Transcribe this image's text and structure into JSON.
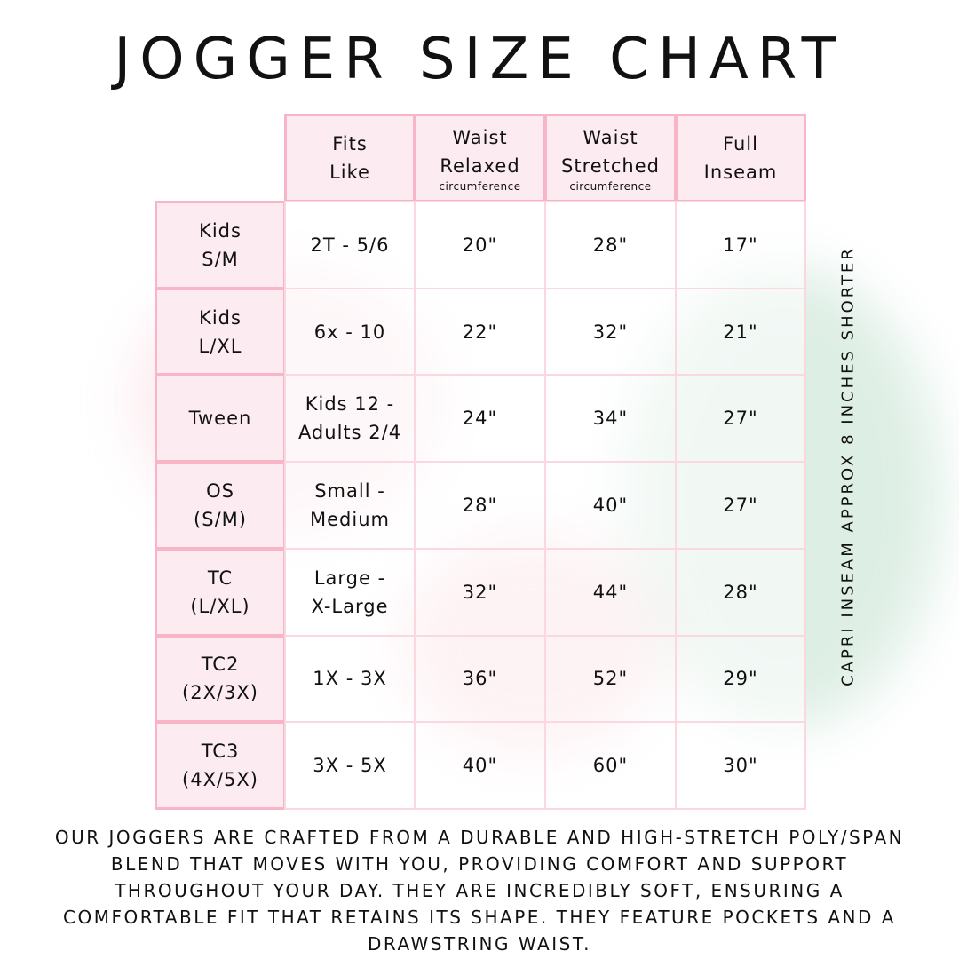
{
  "title": "JOGGER SIZE CHART",
  "headers": [
    {
      "line1": "Fits",
      "line2": "Like",
      "sub": ""
    },
    {
      "line1": "Waist",
      "line2": "Relaxed",
      "sub": "circumference"
    },
    {
      "line1": "Waist",
      "line2": "Stretched",
      "sub": "circumference"
    },
    {
      "line1": "Full",
      "line2": "Inseam",
      "sub": ""
    }
  ],
  "rows": [
    {
      "size": [
        "Kids",
        "S/M"
      ],
      "fits": [
        "2T - 5/6"
      ],
      "relaxed": "20\"",
      "stretched": "28\"",
      "inseam": "17\""
    },
    {
      "size": [
        "Kids",
        "L/XL"
      ],
      "fits": [
        "6x - 10"
      ],
      "relaxed": "22\"",
      "stretched": "32\"",
      "inseam": "21\""
    },
    {
      "size": [
        "Tween"
      ],
      "fits": [
        "Kids 12 -",
        "Adults 2/4"
      ],
      "relaxed": "24\"",
      "stretched": "34\"",
      "inseam": "27\""
    },
    {
      "size": [
        "OS",
        "(S/M)"
      ],
      "fits": [
        "Small -",
        "Medium"
      ],
      "relaxed": "28\"",
      "stretched": "40\"",
      "inseam": "27\""
    },
    {
      "size": [
        "TC",
        "(L/XL)"
      ],
      "fits": [
        "Large -",
        "X-Large"
      ],
      "relaxed": "32\"",
      "stretched": "44\"",
      "inseam": "28\""
    },
    {
      "size": [
        "TC2",
        "(2X/3X)"
      ],
      "fits": [
        "1X - 3X"
      ],
      "relaxed": "36\"",
      "stretched": "52\"",
      "inseam": "29\""
    },
    {
      "size": [
        "TC3",
        "(4X/5X)"
      ],
      "fits": [
        "3X - 5X"
      ],
      "relaxed": "40\"",
      "stretched": "60\"",
      "inseam": "30\""
    }
  ],
  "side_note": "CAPRI INSEAM APPROX 8 INCHES SHORTER",
  "description": "Our joggers are crafted from a durable and high-stretch poly/span blend that moves with you, providing comfort and support throughout your day. They are incredibly soft, ensuring a comfortable fit that retains its shape. They feature pockets and a drawstring waist.",
  "colors": {
    "header_bg": "#fcebf0",
    "border": "#f7b5c7"
  }
}
